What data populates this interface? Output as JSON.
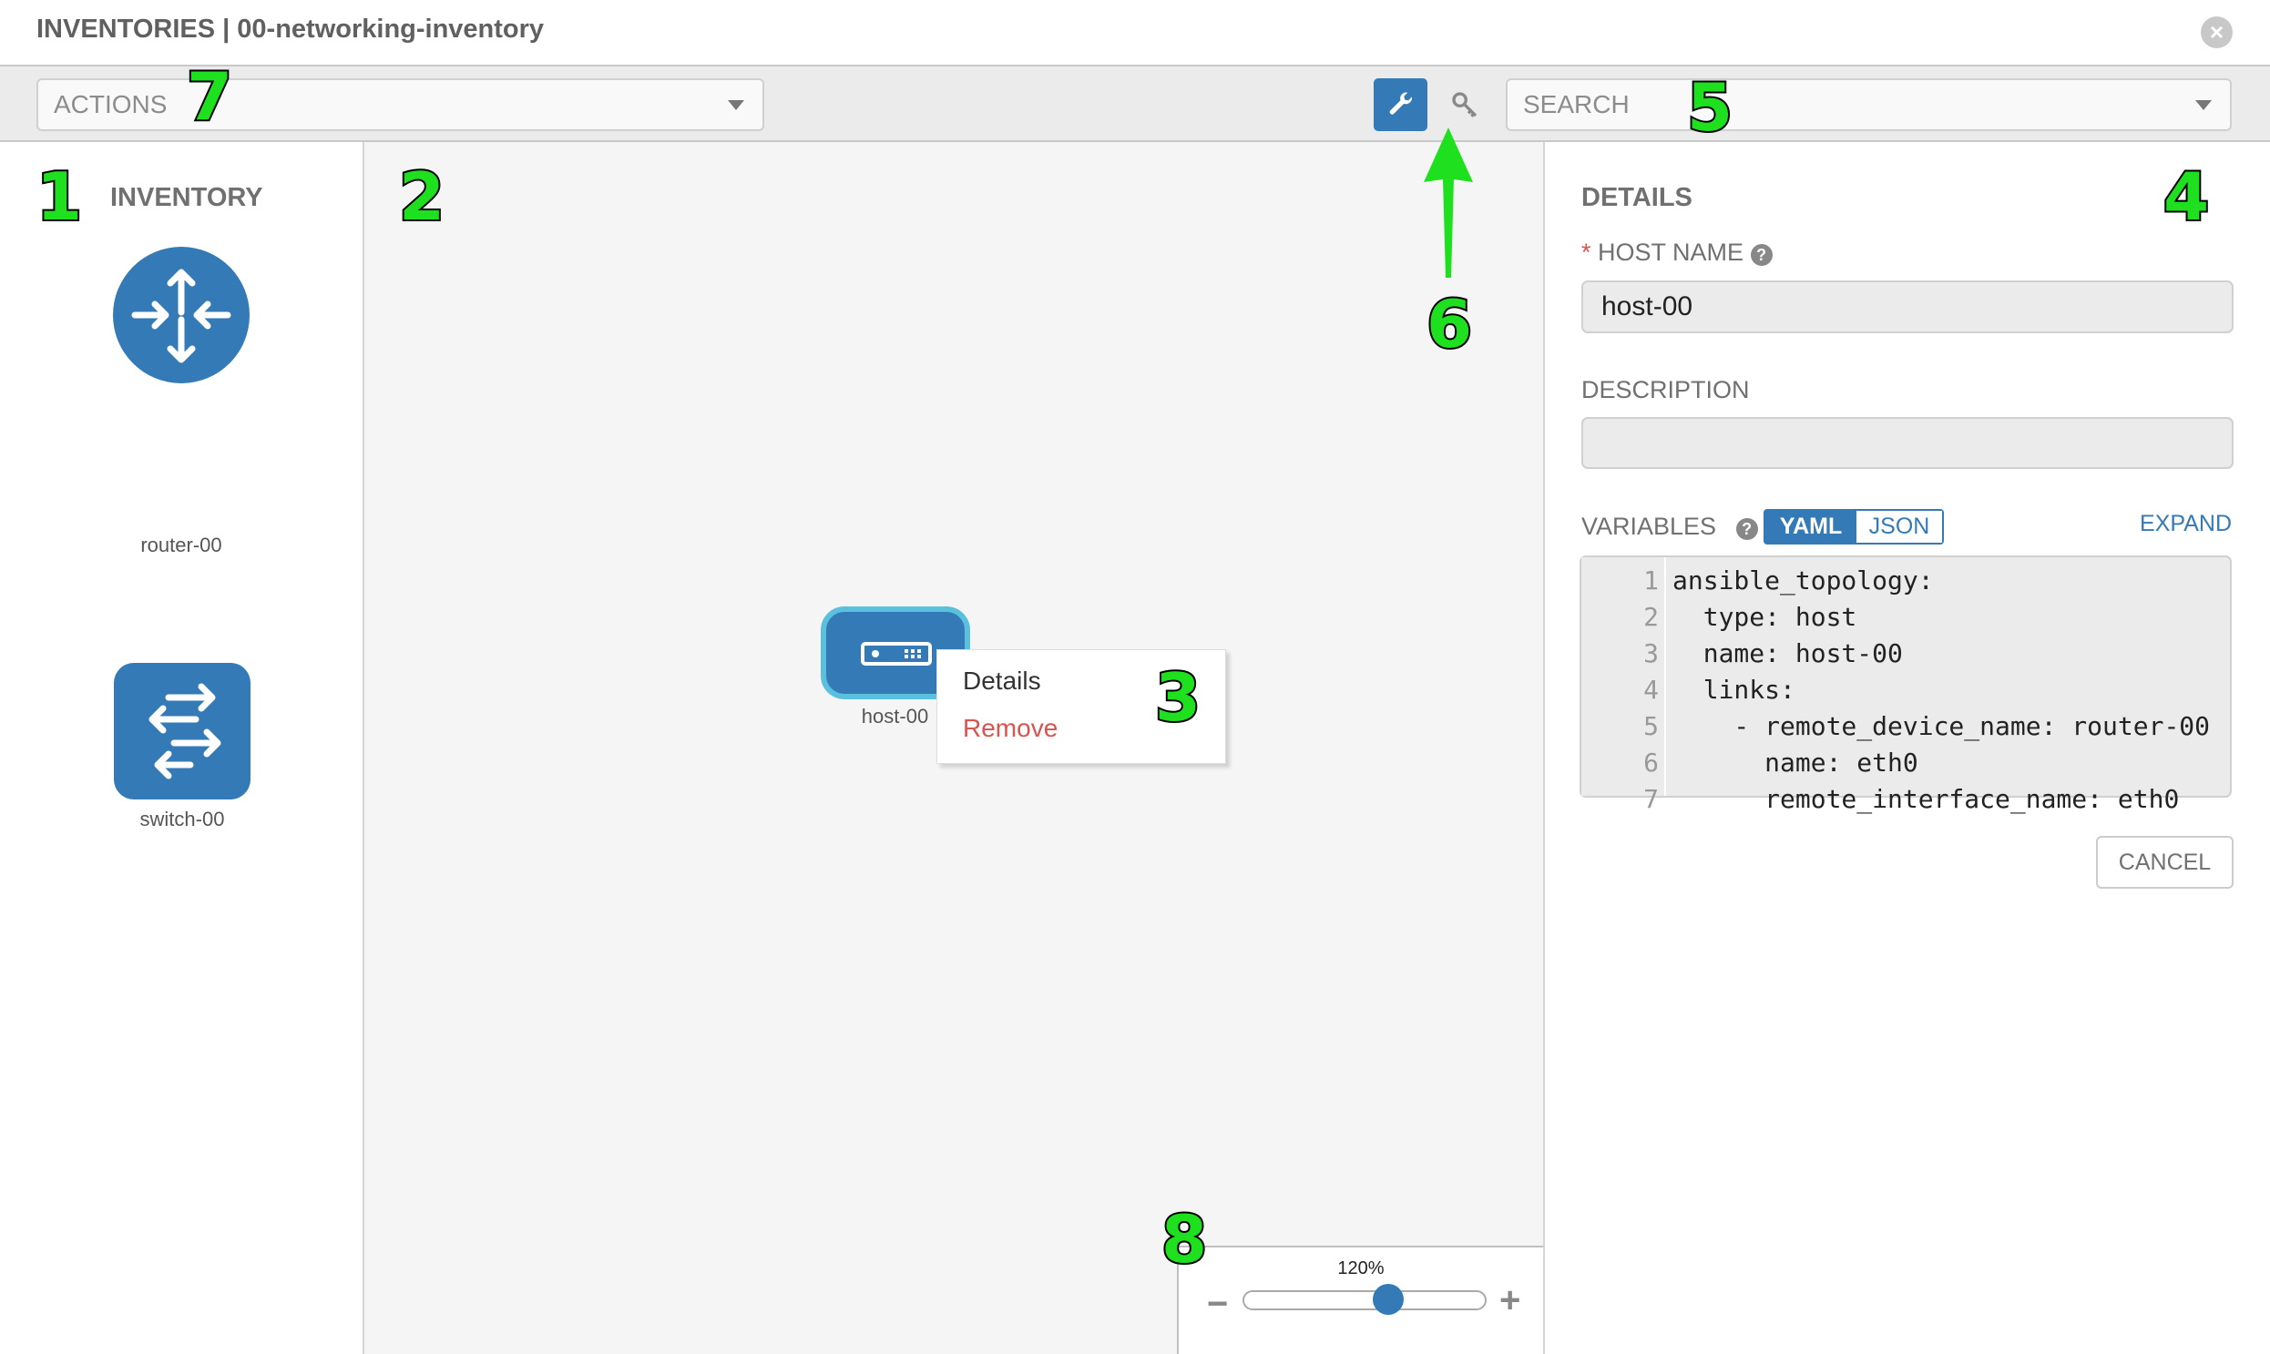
{
  "header": {
    "title": "INVENTORIES | 00-networking-inventory",
    "close_icon": "close-circle-icon"
  },
  "toolbar": {
    "actions_placeholder": "ACTIONS",
    "search_placeholder": "SEARCH",
    "wrench_icon": "wrench-icon",
    "key_icon": "key-icon",
    "accent": "#337ab7"
  },
  "inventory": {
    "title": "INVENTORY",
    "items": [
      {
        "label": "router-00",
        "icon": "router-icon"
      },
      {
        "label": "switch-00",
        "icon": "switch-icon"
      }
    ]
  },
  "canvas": {
    "node": {
      "label": "host-00",
      "icon": "host-icon"
    },
    "context_menu": {
      "items": [
        "Details",
        "Remove"
      ]
    }
  },
  "details": {
    "title": "DETAILS",
    "host_name_label": "HOST NAME",
    "required_marker": "*",
    "host_name_value": "host-00",
    "description_label": "DESCRIPTION",
    "description_value": "",
    "variables_label": "VARIABLES",
    "toggle": {
      "yaml": "YAML",
      "json": "JSON",
      "selected": "YAML"
    },
    "expand_label": "EXPAND",
    "code_lines": [
      "ansible_topology:",
      "  type: host",
      "  name: host-00",
      "  links:",
      "    - remote_device_name: router-00",
      "      name: eth0",
      "      remote_interface_name: eth0"
    ],
    "cancel_label": "CANCEL"
  },
  "zoom": {
    "label": "120%",
    "value_percent": 120,
    "slider_fraction": 0.6,
    "minus": "−",
    "plus": "+"
  },
  "annotations": [
    "1",
    "2",
    "3",
    "4",
    "5",
    "6",
    "7",
    "8"
  ]
}
